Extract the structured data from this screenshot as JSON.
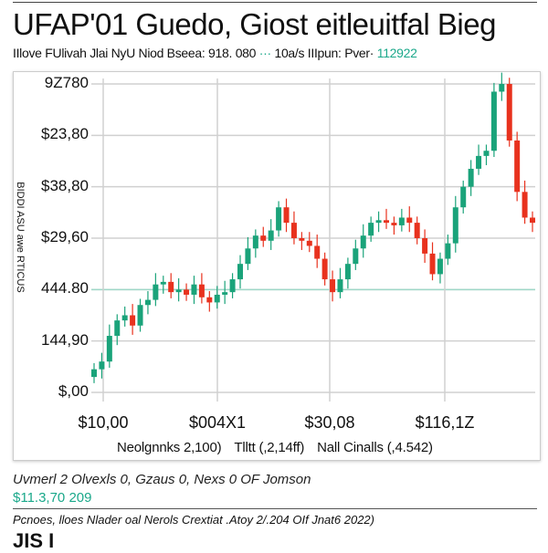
{
  "header": {
    "title": "UFAP'01 Guedo, Giost eitleuitfal Bieg",
    "subtitle": "IIlove FUlivah  Jlai NyU Niod Bseea: 918. 080",
    "subtitle_accent_prefix": "···",
    "subtitle_mid": "10a/s IIIpun: Pver·",
    "subtitle_accent_value": "112922"
  },
  "footer": {
    "note": "Uvmerl 2 Olvexls 0, Gzaus 0, Nexs 0 OF Jomson",
    "total": "$11.3,70 209",
    "source": "Pcnoes, lloes Nlader oal Nerols Crextiat .Atoy 2/.204  OIf Jnat6 2022)",
    "logo": "JIS I"
  },
  "chart_data": {
    "type": "candlestick",
    "title": "UFAP'01 Guedo, Giost eitleuitfal Bieg",
    "ylabel": "BIDDI ASU awe RTICUS",
    "yticks": [
      "$,00",
      "144,90",
      "444.80",
      "$29,60",
      "$38,80",
      "$23,80",
      "9Z780"
    ],
    "xticks": [
      "$10,00",
      "$004X1",
      "$30,08",
      "$116,1Z"
    ],
    "legend": [
      "Neolgnnks 2,100)",
      "Tlltt (,2,14ff)",
      "Nall Cinalls (,4.542)"
    ],
    "legend_placement": "bottom",
    "grid": true,
    "reference_line_level": 2.0,
    "y_units": "tick index (tick labels illegible)",
    "ylim": [
      0,
      6
    ],
    "first_open": 0.3,
    "close": [
      0.45,
      0.6,
      1.1,
      1.4,
      1.5,
      1.3,
      1.7,
      1.8,
      2.1,
      2.15,
      1.95,
      2.0,
      1.9,
      2.1,
      1.85,
      1.75,
      1.9,
      1.95,
      2.2,
      2.5,
      2.8,
      3.05,
      2.95,
      3.15,
      3.6,
      3.3,
      3.0,
      2.95,
      2.85,
      2.6,
      2.2,
      1.95,
      2.2,
      2.5,
      2.8,
      3.05,
      3.3,
      3.35,
      3.3,
      3.25,
      3.4,
      3.3,
      3.0,
      2.7,
      2.3,
      2.6,
      2.9,
      3.6,
      4.0,
      4.35,
      4.6,
      4.7,
      5.85,
      6.0,
      4.9,
      3.9,
      3.4,
      3.3
    ],
    "colors": {
      "up": "#1aa37a",
      "down": "#e8321e",
      "grid": "#d0d0d0",
      "reference": "#9fd8c8"
    }
  }
}
